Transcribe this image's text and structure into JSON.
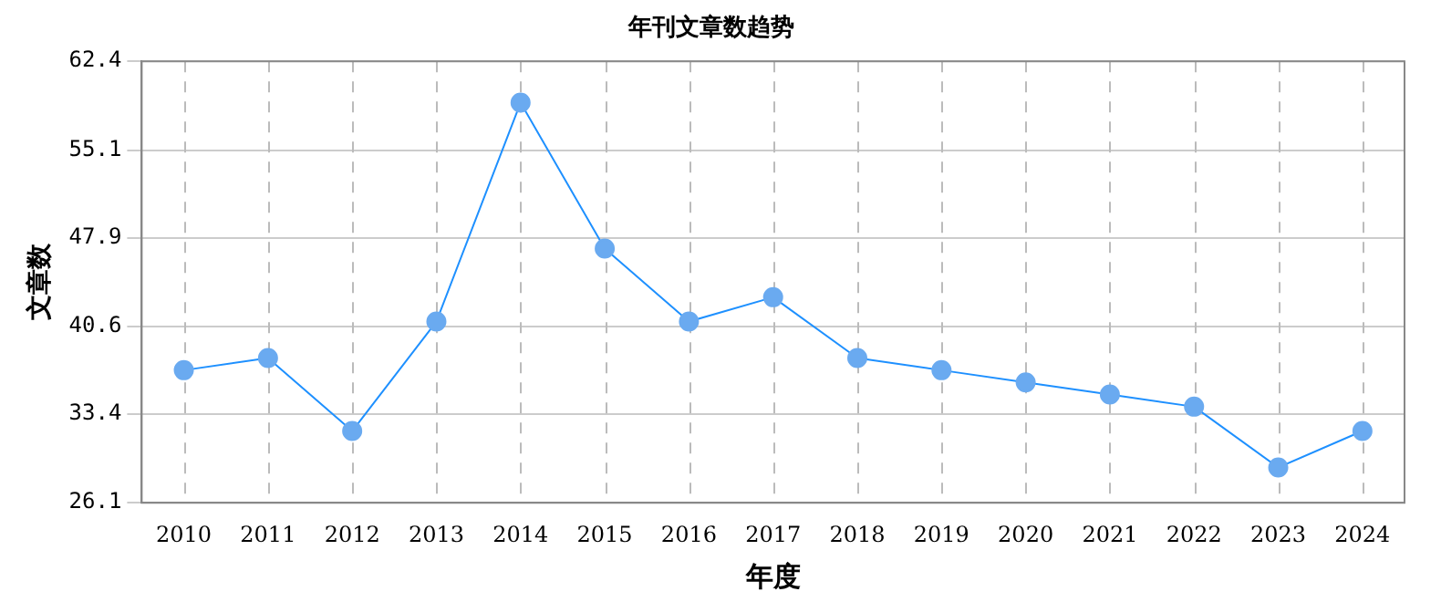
{
  "chart_data": {
    "type": "line",
    "title": "年刊文章数趋势",
    "xlabel": "年度",
    "ylabel": "文章数",
    "categories": [
      "2010",
      "2011",
      "2012",
      "2013",
      "2014",
      "2015",
      "2016",
      "2017",
      "2018",
      "2019",
      "2020",
      "2021",
      "2022",
      "2023",
      "2024"
    ],
    "series": [
      {
        "color": "#1e90ff",
        "values": [
          37,
          38,
          32,
          41,
          59,
          47,
          41,
          43,
          38,
          37,
          36,
          35,
          34,
          29,
          32
        ]
      }
    ],
    "ylim": [
      26.1,
      62.4
    ],
    "yticks": [
      26.1,
      33.4,
      40.6,
      47.9,
      55.1,
      62.4
    ],
    "grid": true,
    "marker": "circle",
    "line_style": "solid",
    "legend": false
  }
}
